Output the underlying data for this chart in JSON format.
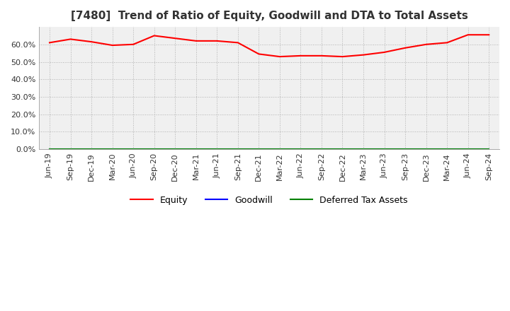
{
  "title": "[7480]  Trend of Ratio of Equity, Goodwill and DTA to Total Assets",
  "x_labels": [
    "Jun-19",
    "Sep-19",
    "Dec-19",
    "Mar-20",
    "Jun-20",
    "Sep-20",
    "Dec-20",
    "Mar-21",
    "Jun-21",
    "Sep-21",
    "Dec-21",
    "Mar-22",
    "Jun-22",
    "Sep-22",
    "Dec-22",
    "Mar-23",
    "Jun-23",
    "Sep-23",
    "Dec-23",
    "Mar-24",
    "Jun-24",
    "Sep-24"
  ],
  "equity": [
    0.61,
    0.63,
    0.615,
    0.595,
    0.6,
    0.65,
    0.635,
    0.62,
    0.62,
    0.61,
    0.545,
    0.53,
    0.535,
    0.535,
    0.53,
    0.54,
    0.555,
    0.58,
    0.6,
    0.61,
    0.655,
    0.655
  ],
  "goodwill": [
    0.0,
    0.0,
    0.0,
    0.0,
    0.0,
    0.0,
    0.0,
    0.0,
    0.0,
    0.0,
    0.0,
    0.0,
    0.0,
    0.0,
    0.0,
    0.0,
    0.0,
    0.0,
    0.0,
    0.0,
    0.0,
    0.0
  ],
  "dta": [
    0.0,
    0.0,
    0.0,
    0.0,
    0.0,
    0.0,
    0.0,
    0.0,
    0.0,
    0.0,
    0.0,
    0.0,
    0.0,
    0.0,
    0.0,
    0.0,
    0.0,
    0.0,
    0.0,
    0.0,
    0.0,
    0.0
  ],
  "equity_color": "#ff0000",
  "goodwill_color": "#0000ff",
  "dta_color": "#008000",
  "background_color": "#ffffff",
  "plot_bg_color": "#f0f0f0",
  "grid_color": "#aaaaaa",
  "ylim": [
    0.0,
    0.7
  ],
  "yticks": [
    0.0,
    0.1,
    0.2,
    0.3,
    0.4,
    0.5,
    0.6
  ],
  "title_fontsize": 11,
  "legend_labels": [
    "Equity",
    "Goodwill",
    "Deferred Tax Assets"
  ]
}
